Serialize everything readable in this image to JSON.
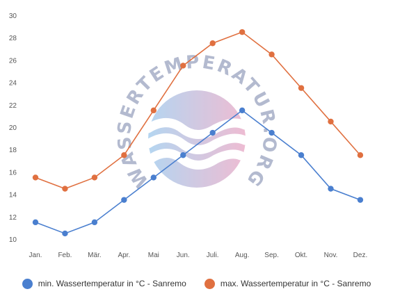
{
  "chart_data": {
    "type": "line",
    "categories": [
      "Jan.",
      "Feb.",
      "Mär.",
      "Apr.",
      "Mai",
      "Jun.",
      "Juli.",
      "Aug.",
      "Sep.",
      "Okt.",
      "Nov.",
      "Dez."
    ],
    "y_ticks": [
      10,
      12,
      14,
      16,
      18,
      20,
      22,
      24,
      26,
      28,
      30
    ],
    "ylim": [
      10,
      30
    ],
    "grid": false,
    "legend_position": "bottom",
    "series": [
      {
        "name": "min. Wassertemperatur in °C - Sanremo",
        "color": "#4a7fcf",
        "values": [
          11.5,
          10.5,
          11.5,
          13.5,
          15.5,
          17.5,
          19.5,
          21.5,
          19.5,
          17.5,
          14.5,
          13.5
        ]
      },
      {
        "name": "max. Wassertemperatur in °C - Sanremo",
        "color": "#e07040",
        "values": [
          15.5,
          14.5,
          15.5,
          17.5,
          21.5,
          25.5,
          27.5,
          28.5,
          26.5,
          23.5,
          20.5,
          17.5
        ]
      }
    ],
    "watermark": "WASSERTEMPERATUR.ORG"
  }
}
